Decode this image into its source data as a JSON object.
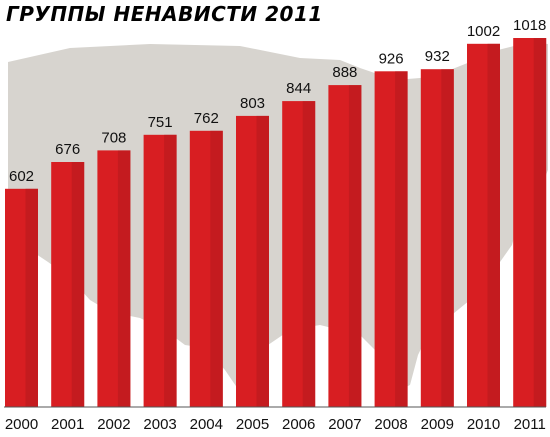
{
  "chart_data": {
    "type": "bar",
    "title": "ГРУППЫ НЕНАВИСТИ 2011",
    "categories": [
      "2000",
      "2001",
      "2002",
      "2003",
      "2004",
      "2005",
      "2006",
      "2007",
      "2008",
      "2009",
      "2010",
      "2011"
    ],
    "values": [
      602,
      676,
      708,
      751,
      762,
      803,
      844,
      888,
      926,
      932,
      1002,
      1018
    ],
    "data_labels": [
      "602",
      "676",
      "708",
      "751",
      "762",
      "803",
      "844",
      "888",
      "926",
      "932",
      "1002",
      "1018"
    ],
    "xlabel": "",
    "ylabel": "",
    "ylim": [
      0,
      1018
    ],
    "grid": false,
    "legend": "none",
    "colors": {
      "bar": "#d81e22",
      "bar_shade": "#b51a1e",
      "map": "#d7d4cf",
      "baseline": "#555555",
      "background": "#ffffff"
    }
  }
}
